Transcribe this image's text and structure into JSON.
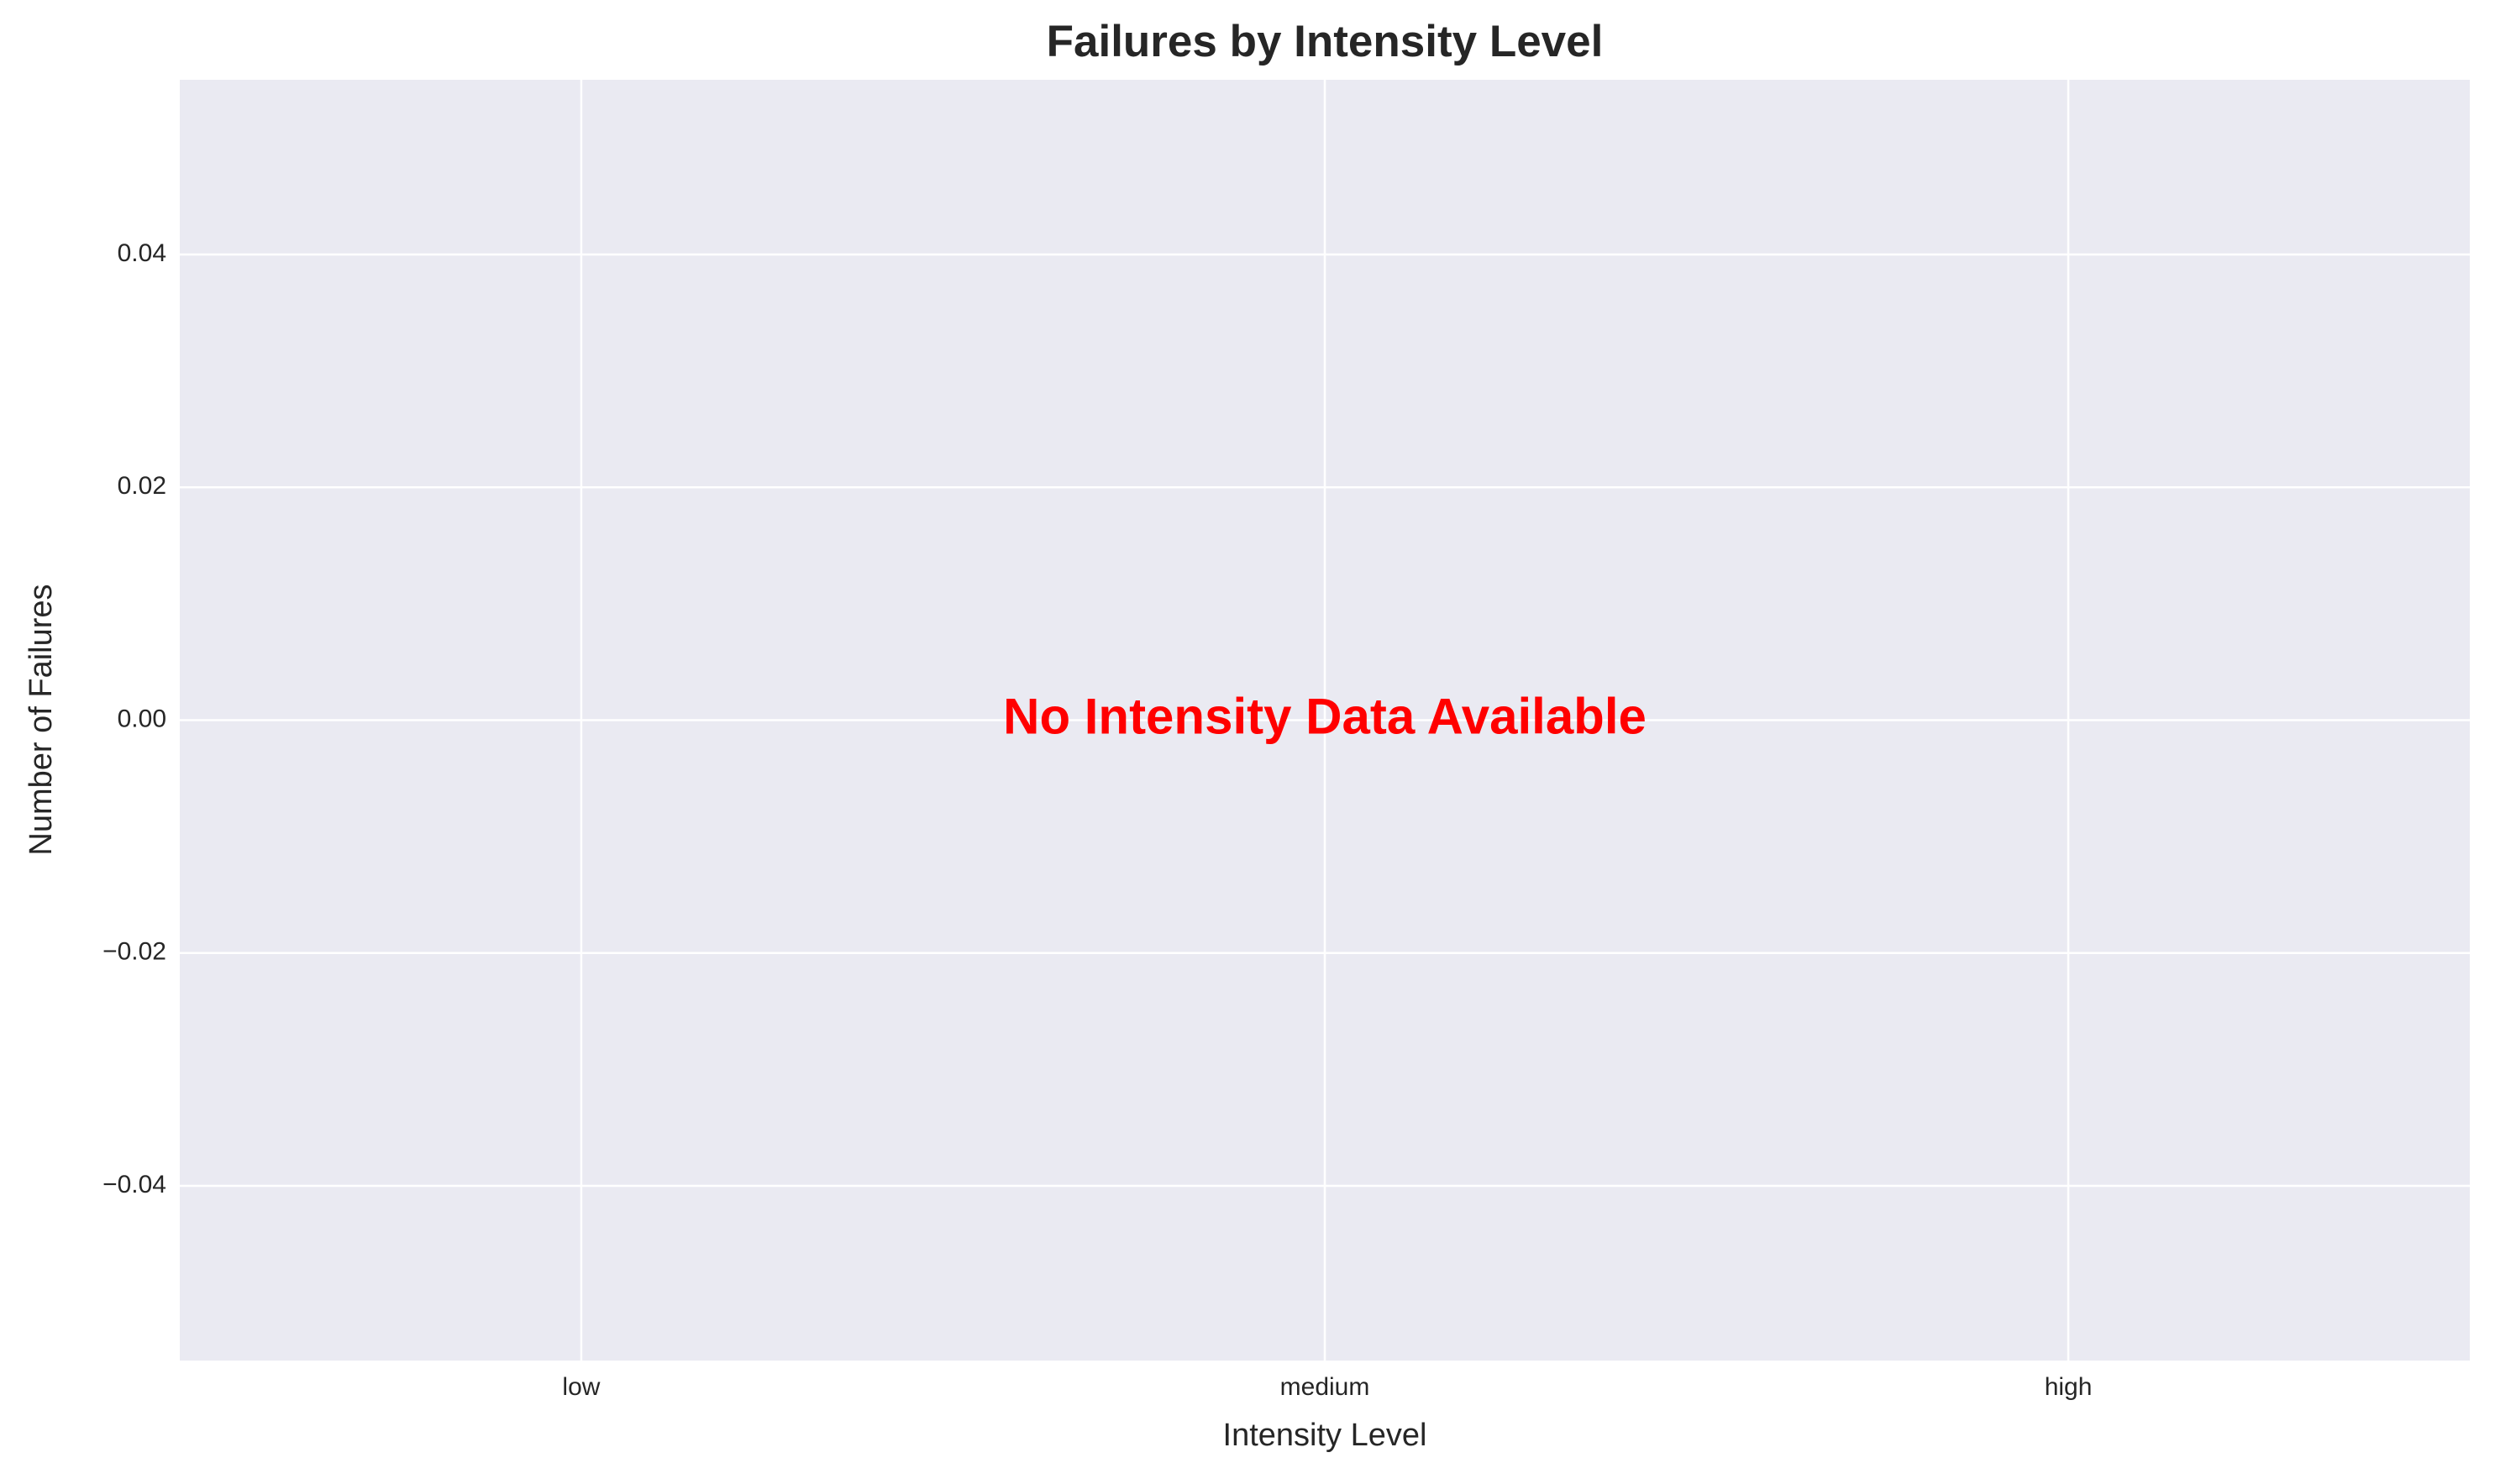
{
  "chart_data": {
    "type": "bar",
    "title": "Failures by Intensity Level",
    "x_label": "Intensity Level",
    "y_label": "Number of Failures",
    "annotation": "No Intensity Data Available",
    "categories": [
      "low",
      "medium",
      "high"
    ],
    "values": [
      0,
      0,
      0
    ],
    "ylim": [
      -0.055,
      0.055
    ],
    "yticks": [
      {
        "value": -0.04,
        "label": "−0.04"
      },
      {
        "value": -0.02,
        "label": "−0.02"
      },
      {
        "value": 0,
        "label": "0.00"
      },
      0.02,
      0.04
    ],
    "grid": true
  }
}
